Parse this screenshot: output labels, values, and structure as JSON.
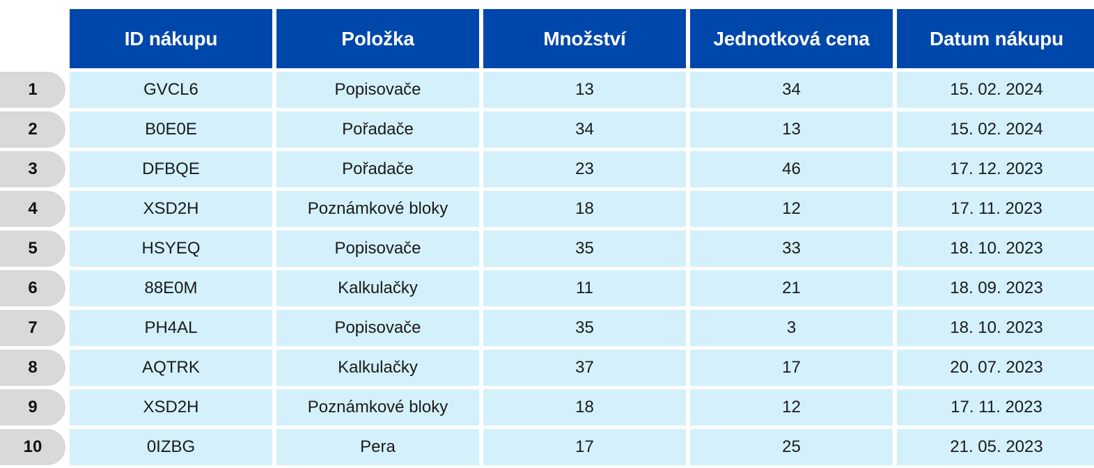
{
  "table": {
    "columns": [
      "ID nákupu",
      "Položka",
      "Množství",
      "Jednotková cena",
      "Datum nákupu"
    ],
    "rows": [
      {
        "n": "1",
        "id": "GVCL6",
        "item": "Popisovače",
        "qty": "13",
        "price": "34",
        "date": "15. 02. 2024"
      },
      {
        "n": "2",
        "id": "B0E0E",
        "item": "Pořadače",
        "qty": "34",
        "price": "13",
        "date": "15. 02. 2024"
      },
      {
        "n": "3",
        "id": "DFBQE",
        "item": "Pořadače",
        "qty": "23",
        "price": "46",
        "date": "17. 12. 2023"
      },
      {
        "n": "4",
        "id": "XSD2H",
        "item": "Poznámkové bloky",
        "qty": "18",
        "price": "12",
        "date": "17. 11. 2023"
      },
      {
        "n": "5",
        "id": "HSYEQ",
        "item": "Popisovače",
        "qty": "35",
        "price": "33",
        "date": "18. 10. 2023"
      },
      {
        "n": "6",
        "id": "88E0M",
        "item": "Kalkulačky",
        "qty": "11",
        "price": "21",
        "date": "18. 09. 2023"
      },
      {
        "n": "7",
        "id": "PH4AL",
        "item": "Popisovače",
        "qty": "35",
        "price": "3",
        "date": "18. 10. 2023"
      },
      {
        "n": "8",
        "id": "AQTRK",
        "item": "Kalkulačky",
        "qty": "37",
        "price": "17",
        "date": "20. 07. 2023"
      },
      {
        "n": "9",
        "id": "XSD2H",
        "item": "Poznámkové bloky",
        "qty": "18",
        "price": "12",
        "date": "17. 11. 2023"
      },
      {
        "n": "10",
        "id": "0IZBG",
        "item": "Pera",
        "qty": "17",
        "price": "25",
        "date": "21. 05. 2023"
      }
    ]
  },
  "colors": {
    "header_bg": "#0047ab",
    "header_text": "#ffffff",
    "cell_bg": "#d4f1fb",
    "rownum_bg": "#d9d9d9"
  }
}
